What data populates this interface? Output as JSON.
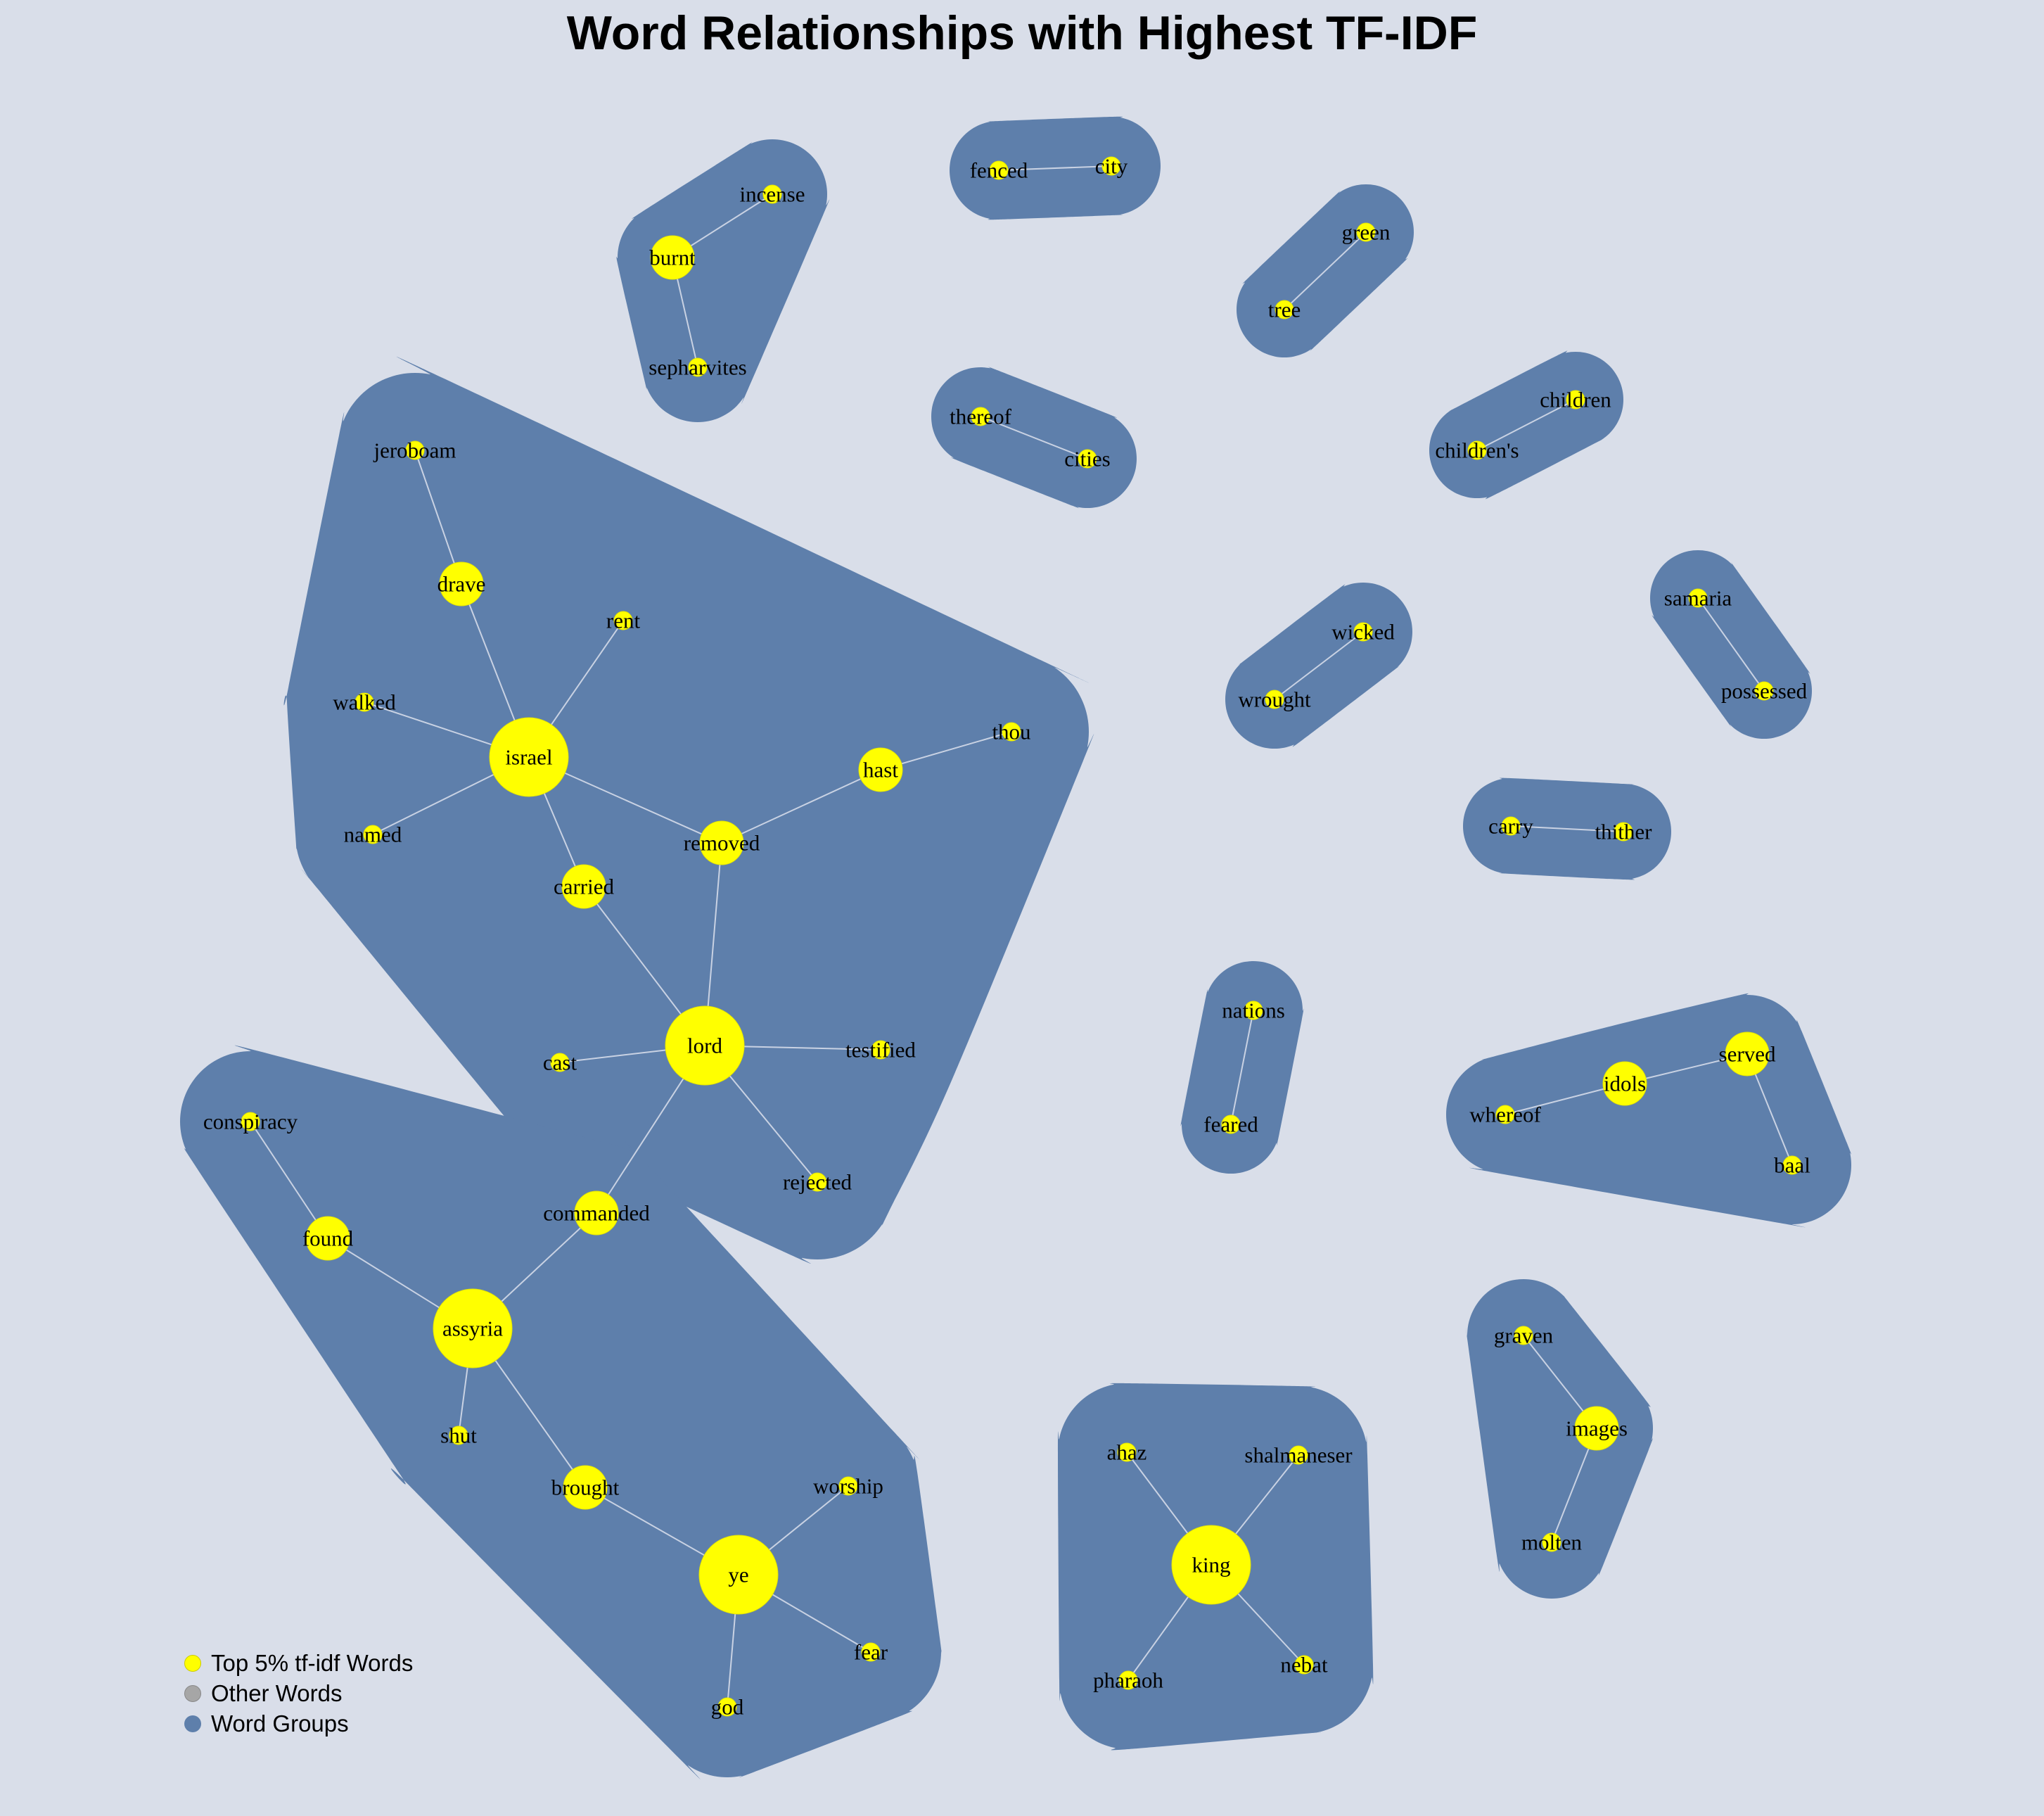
{
  "title": "Word Relationships with Highest TF-IDF",
  "colors": {
    "background": "#d9dee9",
    "group": "#5e7fab",
    "top_word": "#ffff00",
    "other_word": "#a6a6a6",
    "edge": "#c9d2e3"
  },
  "legend": [
    {
      "label": "Top 5% tf-idf Words",
      "color": "#ffff00"
    },
    {
      "label": "Other Words",
      "color": "#a6a6a6"
    },
    {
      "label": "Word Groups",
      "color": "#5e7fab"
    }
  ],
  "groups": [
    {
      "words": [
        "israel",
        "lord",
        "removed",
        "carried",
        "drave",
        "jeroboam",
        "rent",
        "walked",
        "named",
        "hast",
        "thou",
        "cast",
        "testified",
        "rejected"
      ]
    },
    {
      "words": [
        "assyria",
        "commanded",
        "found",
        "conspiracy",
        "shut",
        "brought",
        "ye",
        "worship",
        "fear",
        "god"
      ]
    },
    {
      "words": [
        "burnt",
        "incense",
        "sepharvites"
      ]
    },
    {
      "words": [
        "fenced",
        "city"
      ]
    },
    {
      "words": [
        "green",
        "tree"
      ]
    },
    {
      "words": [
        "thereof",
        "cities"
      ]
    },
    {
      "words": [
        "children",
        "children's"
      ]
    },
    {
      "words": [
        "wicked",
        "wrought"
      ]
    },
    {
      "words": [
        "samaria",
        "possessed"
      ]
    },
    {
      "words": [
        "carry",
        "thither"
      ]
    },
    {
      "words": [
        "nations",
        "feared"
      ]
    },
    {
      "words": [
        "idols",
        "served",
        "whereof",
        "baal"
      ]
    },
    {
      "words": [
        "graven",
        "images",
        "molten"
      ]
    },
    {
      "words": [
        "king",
        "ahaz",
        "shalmaneser",
        "pharaoh",
        "nebat"
      ]
    }
  ],
  "nodes": [
    {
      "word": "israel",
      "size": 3
    },
    {
      "word": "lord",
      "size": 3
    },
    {
      "word": "assyria",
      "size": 3
    },
    {
      "word": "ye",
      "size": 3
    },
    {
      "word": "king",
      "size": 3
    },
    {
      "word": "removed",
      "size": 2
    },
    {
      "word": "carried",
      "size": 2
    },
    {
      "word": "drave",
      "size": 2
    },
    {
      "word": "hast",
      "size": 2
    },
    {
      "word": "commanded",
      "size": 2
    },
    {
      "word": "found",
      "size": 2
    },
    {
      "word": "brought",
      "size": 2
    },
    {
      "word": "burnt",
      "size": 2
    },
    {
      "word": "idols",
      "size": 2
    },
    {
      "word": "served",
      "size": 2
    },
    {
      "word": "images",
      "size": 2
    },
    {
      "word": "jeroboam",
      "size": 1
    },
    {
      "word": "rent",
      "size": 1
    },
    {
      "word": "walked",
      "size": 1
    },
    {
      "word": "named",
      "size": 1
    },
    {
      "word": "thou",
      "size": 1
    },
    {
      "word": "cast",
      "size": 1
    },
    {
      "word": "testified",
      "size": 1
    },
    {
      "word": "rejected",
      "size": 1
    },
    {
      "word": "conspiracy",
      "size": 1
    },
    {
      "word": "shut",
      "size": 1
    },
    {
      "word": "worship",
      "size": 1
    },
    {
      "word": "fear",
      "size": 1
    },
    {
      "word": "god",
      "size": 1
    },
    {
      "word": "incense",
      "size": 1
    },
    {
      "word": "sepharvites",
      "size": 1
    },
    {
      "word": "fenced",
      "size": 1
    },
    {
      "word": "city",
      "size": 1
    },
    {
      "word": "green",
      "size": 1
    },
    {
      "word": "tree",
      "size": 1
    },
    {
      "word": "thereof",
      "size": 1
    },
    {
      "word": "cities",
      "size": 1
    },
    {
      "word": "children",
      "size": 1
    },
    {
      "word": "children's",
      "size": 1
    },
    {
      "word": "wicked",
      "size": 1
    },
    {
      "word": "wrought",
      "size": 1
    },
    {
      "word": "samaria",
      "size": 1
    },
    {
      "word": "possessed",
      "size": 1
    },
    {
      "word": "carry",
      "size": 1
    },
    {
      "word": "thither",
      "size": 1
    },
    {
      "word": "nations",
      "size": 1
    },
    {
      "word": "feared",
      "size": 1
    },
    {
      "word": "whereof",
      "size": 1
    },
    {
      "word": "baal",
      "size": 1
    },
    {
      "word": "graven",
      "size": 1
    },
    {
      "word": "molten",
      "size": 1
    },
    {
      "word": "ahaz",
      "size": 1
    },
    {
      "word": "shalmaneser",
      "size": 1
    },
    {
      "word": "pharaoh",
      "size": 1
    },
    {
      "word": "nebat",
      "size": 1
    }
  ],
  "edges": [
    [
      "jeroboam",
      "drave"
    ],
    [
      "drave",
      "israel"
    ],
    [
      "rent",
      "israel"
    ],
    [
      "walked",
      "israel"
    ],
    [
      "named",
      "israel"
    ],
    [
      "israel",
      "carried"
    ],
    [
      "israel",
      "removed"
    ],
    [
      "removed",
      "hast"
    ],
    [
      "hast",
      "thou"
    ],
    [
      "removed",
      "lord"
    ],
    [
      "carried",
      "lord"
    ],
    [
      "cast",
      "lord"
    ],
    [
      "lord",
      "testified"
    ],
    [
      "lord",
      "rejected"
    ],
    [
      "lord",
      "commanded"
    ],
    [
      "commanded",
      "assyria"
    ],
    [
      "conspiracy",
      "found"
    ],
    [
      "found",
      "assyria"
    ],
    [
      "assyria",
      "shut"
    ],
    [
      "assyria",
      "brought"
    ],
    [
      "brought",
      "ye"
    ],
    [
      "ye",
      "worship"
    ],
    [
      "ye",
      "fear"
    ],
    [
      "ye",
      "god"
    ],
    [
      "burnt",
      "incense"
    ],
    [
      "burnt",
      "sepharvites"
    ],
    [
      "fenced",
      "city"
    ],
    [
      "green",
      "tree"
    ],
    [
      "thereof",
      "cities"
    ],
    [
      "children",
      "children's"
    ],
    [
      "wicked",
      "wrought"
    ],
    [
      "samaria",
      "possessed"
    ],
    [
      "carry",
      "thither"
    ],
    [
      "nations",
      "feared"
    ],
    [
      "whereof",
      "idols"
    ],
    [
      "idols",
      "served"
    ],
    [
      "served",
      "baal"
    ],
    [
      "graven",
      "images"
    ],
    [
      "images",
      "molten"
    ],
    [
      "ahaz",
      "king"
    ],
    [
      "shalmaneser",
      "king"
    ],
    [
      "king",
      "pharaoh"
    ],
    [
      "king",
      "nebat"
    ]
  ]
}
